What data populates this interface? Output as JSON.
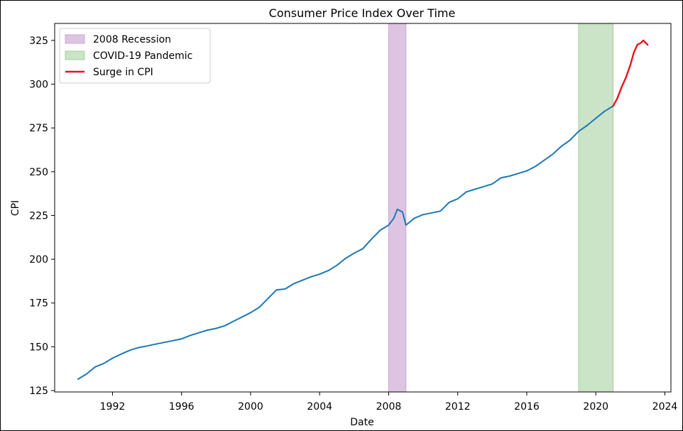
{
  "chart_data": {
    "type": "line",
    "title": "Consumer Price Index Over Time",
    "xlabel": "Date",
    "ylabel": "CPI",
    "xlim": [
      1988.65,
      2024.35
    ],
    "ylim": [
      124.2,
      334.7
    ],
    "xticks": [
      1992,
      1996,
      2000,
      2004,
      2008,
      2012,
      2016,
      2020,
      2024
    ],
    "yticks": [
      125,
      150,
      175,
      200,
      225,
      250,
      275,
      300,
      325
    ],
    "grid": false,
    "legend_position": "top-left",
    "legend": [
      {
        "label": "2008 Recession",
        "kind": "patch",
        "color": "#DDC5E2",
        "edge": "#C9A6D1"
      },
      {
        "label": "COVID-19 Pandemic",
        "kind": "patch",
        "color": "#CBE3C7",
        "edge": "#A9CFA3"
      },
      {
        "label": "Surge in CPI",
        "kind": "line",
        "color": "#E8141C"
      }
    ],
    "shaded_regions": [
      {
        "name": "2008 Recession",
        "x_start": 2008.0,
        "x_end": 2009.0,
        "color": "#DDC5E2",
        "edge": "#C9A6D1"
      },
      {
        "name": "COVID-19 Pandemic",
        "x_start": 2019.0,
        "x_end": 2021.0,
        "color": "#CBE3C7",
        "edge": "#A9CFA3"
      }
    ],
    "series": [
      {
        "color": "#1F77B4",
        "x": [
          1990.0,
          1990.5,
          1991.0,
          1991.5,
          1992.0,
          1992.5,
          1993.0,
          1993.5,
          1994.0,
          1994.5,
          1995.0,
          1995.5,
          1996.0,
          1996.5,
          1997.0,
          1997.5,
          1998.0,
          1998.5,
          1999.0,
          1999.5,
          2000.0,
          2000.5,
          2001.0,
          2001.5,
          2002.0,
          2002.5,
          2003.0,
          2003.5,
          2004.0,
          2004.5,
          2005.0,
          2005.5,
          2006.0,
          2006.5,
          2007.0,
          2007.5,
          2008.0,
          2008.3,
          2008.5,
          2008.8,
          2009.0,
          2009.5,
          2010.0,
          2010.5,
          2011.0,
          2011.5,
          2012.0,
          2012.5,
          2013.0,
          2013.5,
          2014.0,
          2014.5,
          2015.0,
          2015.5,
          2016.0,
          2016.5,
          2017.0,
          2017.5,
          2018.0,
          2018.5,
          2019.0,
          2019.5,
          2020.0,
          2020.5,
          2021.0
        ],
        "y": [
          131.5,
          134.5,
          138.5,
          140.5,
          143.5,
          145.8,
          148.0,
          149.5,
          150.5,
          151.5,
          152.5,
          153.5,
          154.5,
          156.5,
          158.0,
          159.5,
          160.5,
          162.0,
          164.5,
          167.0,
          169.5,
          172.5,
          177.5,
          182.5,
          183.0,
          186.0,
          188.0,
          190.0,
          191.5,
          193.5,
          196.5,
          200.5,
          203.5,
          206.0,
          211.5,
          216.5,
          219.5,
          223.5,
          228.5,
          227.0,
          219.5,
          223.5,
          225.5,
          226.5,
          227.5,
          232.5,
          234.5,
          238.5,
          240.0,
          241.5,
          243.0,
          246.5,
          247.5,
          249.0,
          250.5,
          253.0,
          256.5,
          260.0,
          264.5,
          268.0,
          273.0,
          276.5,
          280.5,
          284.5,
          287.5
        ]
      },
      {
        "name": "Surge in CPI",
        "color": "#E8141C",
        "x": [
          2021.0,
          2021.25,
          2021.5,
          2021.75,
          2022.0,
          2022.2,
          2022.4,
          2022.6,
          2022.75,
          2022.9,
          2023.0
        ],
        "y": [
          287.5,
          292.0,
          298.5,
          304.0,
          311.0,
          318.0,
          322.5,
          323.5,
          325.0,
          323.5,
          322.5
        ]
      }
    ]
  }
}
